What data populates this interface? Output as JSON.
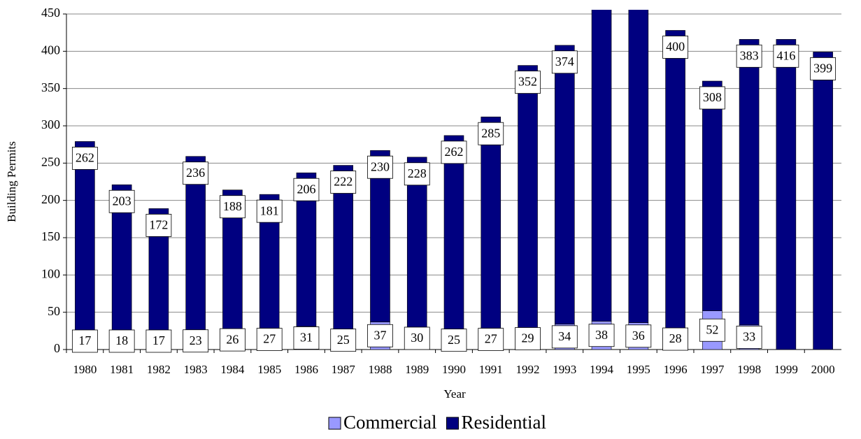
{
  "chart_data": {
    "type": "stacked_bar",
    "x_label": "Year",
    "y_label": "Building Permits",
    "categories": [
      "1980",
      "1981",
      "1982",
      "1983",
      "1984",
      "1985",
      "1986",
      "1987",
      "1988",
      "1989",
      "1990",
      "1991",
      "1992",
      "1993",
      "1994",
      "1995",
      "1996",
      "1997",
      "1998",
      "1999",
      "2000"
    ],
    "series": [
      {
        "name": "Commercial",
        "color": "#9999ff",
        "values": [
          17,
          18,
          17,
          23,
          26,
          27,
          31,
          25,
          37,
          30,
          25,
          27,
          29,
          34,
          38,
          36,
          28,
          52,
          33,
          null,
          null
        ]
      },
      {
        "name": "Residential",
        "color": "#000080",
        "values": [
          262,
          203,
          172,
          236,
          188,
          181,
          206,
          222,
          230,
          228,
          262,
          285,
          352,
          374,
          430,
          420,
          400,
          308,
          383,
          416,
          399
        ]
      }
    ],
    "ylim": [
      0,
      450
    ],
    "yticks": [
      0,
      50,
      100,
      150,
      200,
      250,
      300,
      350,
      400,
      450
    ],
    "grid": true,
    "legend": "bottom"
  }
}
